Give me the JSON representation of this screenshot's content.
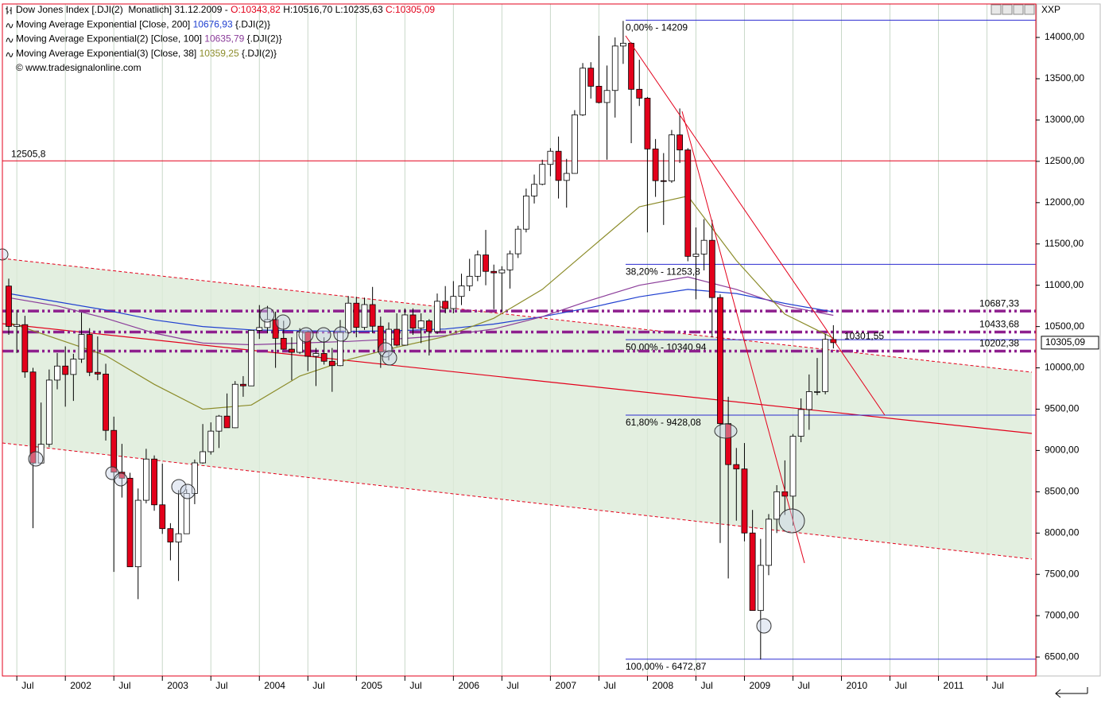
{
  "chart_data": {
    "type": "candlestick",
    "corner_label": "XXP",
    "legend_lines": [
      [
        {
          "text": "Dow Jones Index [.DJI(2)  Monatlich] 31.12.2009 - ",
          "color": "#000000"
        },
        {
          "text": "O:10343,82",
          "color": "#e3001b"
        },
        {
          "text": " H:10516,70 L:10235,63 ",
          "color": "#000000"
        },
        {
          "text": "C:10305,09",
          "color": "#e3001b"
        }
      ],
      [
        {
          "text": "Moving Average Exponential [Close, 200] ",
          "color": "#000000"
        },
        {
          "text": "10676,93",
          "color": "#1f3fd0"
        },
        {
          "text": " {.DJI(2)}",
          "color": "#000000"
        }
      ],
      [
        {
          "text": "Moving Average Exponential(2) [Close, 100] ",
          "color": "#000000"
        },
        {
          "text": "10635,79",
          "color": "#8b3d9a"
        },
        {
          "text": " {.DJI(2)}",
          "color": "#000000"
        }
      ],
      [
        {
          "text": "Moving Average Exponential(3) [Close, 38] ",
          "color": "#000000"
        },
        {
          "text": "10359,25",
          "color": "#8c8c2a"
        },
        {
          "text": " {.DJI(2)}",
          "color": "#000000"
        }
      ],
      [
        {
          "text": "© www.tradesignalonline.com",
          "color": "#000000"
        }
      ]
    ],
    "categories": [
      null,
      "Jul",
      null,
      null,
      null,
      null,
      null,
      "2002",
      null,
      null,
      null,
      null,
      null,
      "Jul",
      null,
      null,
      null,
      null,
      null,
      "2003",
      null,
      null,
      null,
      null,
      null,
      "Jul",
      null,
      null,
      null,
      null,
      null,
      "2004",
      null,
      null,
      null,
      null,
      null,
      "Jul",
      null,
      null,
      null,
      null,
      null,
      "2005",
      null,
      null,
      null,
      null,
      null,
      "Jul",
      null,
      null,
      null,
      null,
      null,
      "2006",
      null,
      null,
      null,
      null,
      null,
      "Jul",
      null,
      null,
      null,
      null,
      null,
      "2007",
      null,
      null,
      null,
      null,
      null,
      "Jul",
      null,
      null,
      null,
      null,
      null,
      "2008",
      null,
      null,
      null,
      null,
      null,
      "Jul",
      null,
      null,
      null,
      null,
      null,
      "2009",
      null,
      null,
      null,
      null,
      null,
      "Jul",
      null,
      null,
      null,
      null,
      null,
      "2010",
      null,
      null,
      null,
      null,
      null,
      "Jul",
      null,
      null,
      null,
      null,
      null,
      "2011",
      null,
      null,
      null,
      null,
      null,
      "Jul",
      null,
      null,
      null,
      null,
      null
    ],
    "ylim": [
      6270,
      14405
    ],
    "yticks": [
      {
        "value": 6500,
        "label": "6500,00"
      },
      {
        "value": 7000,
        "label": "7000,00"
      },
      {
        "value": 7500,
        "label": "7500,00"
      },
      {
        "value": 8000,
        "label": "8000,00"
      },
      {
        "value": 8500,
        "label": "8500,00"
      },
      {
        "value": 9000,
        "label": "9000,00"
      },
      {
        "value": 9500,
        "label": "9500,00"
      },
      {
        "value": 10000,
        "label": "10000,00"
      },
      {
        "value": 10500,
        "label": "10500,00"
      },
      {
        "value": 11000,
        "label": "11000,00"
      },
      {
        "value": 11500,
        "label": "11500,00"
      },
      {
        "value": 12000,
        "label": "12000,00"
      },
      {
        "value": 12500,
        "label": "12500,00"
      },
      {
        "value": 13000,
        "label": "13000,00"
      },
      {
        "value": 13500,
        "label": "13500,00"
      },
      {
        "value": 14000,
        "label": "14000,00"
      }
    ],
    "grid": true,
    "up_color": "#ffffff",
    "down_color": "#e3001b",
    "open": [
      10990,
      10502,
      10523,
      9950,
      8848,
      9075,
      9852,
      10022,
      9920,
      10106,
      10404,
      9946,
      9925,
      9243,
      8737,
      8664,
      7592,
      8397,
      8896,
      8342,
      8054,
      7891,
      7992,
      8480,
      8850,
      8985,
      9234,
      9416,
      9275,
      9801,
      9782,
      10454,
      10488,
      10584,
      10358,
      10226,
      10188,
      10435,
      10140,
      10174,
      10080,
      10027,
      10428,
      10783,
      10490,
      10766,
      10504,
      10193,
      10467,
      10275,
      10641,
      10482,
      10569,
      10440,
      10806,
      10718,
      10865,
      10993,
      11109,
      11367,
      11168,
      11150,
      11186,
      11381,
      11679,
      12081,
      12222,
      12463,
      12622,
      12269,
      12354,
      13063,
      13628,
      13409,
      13212,
      13358,
      13896,
      13930,
      13372,
      13265,
      12650,
      12266,
      12263,
      12820,
      12638,
      11350,
      11378,
      11544,
      10851,
      9325,
      8829,
      8776,
      8001,
      7063,
      7609,
      8168,
      8500,
      8447,
      9172,
      9496,
      9712,
      9713,
      10343.82,
      null,
      null,
      null,
      null,
      null,
      null,
      null,
      null,
      null,
      null,
      null,
      null,
      null,
      null,
      null,
      null,
      null,
      null,
      null,
      null,
      null,
      null,
      null,
      null
    ],
    "high": [
      11080,
      10700,
      10630,
      10000,
      9580,
      9980,
      10180,
      10260,
      10170,
      10670,
      10480,
      10380,
      10050,
      9410,
      9080,
      8730,
      8540,
      9020,
      8940,
      8840,
      8120,
      8520,
      8530,
      8890,
      9320,
      9340,
      9430,
      9690,
      9840,
      9900,
      10460,
      10760,
      10750,
      10680,
      10570,
      10370,
      10480,
      10450,
      10240,
      10370,
      10240,
      10580,
      10870,
      10860,
      10850,
      10980,
      10620,
      10550,
      10660,
      10720,
      10720,
      10660,
      10590,
      10900,
      10990,
      11050,
      11140,
      11320,
      11420,
      11670,
      11250,
      11230,
      11420,
      11720,
      12170,
      12340,
      12520,
      12660,
      12800,
      12530,
      13120,
      13690,
      13700,
      14020,
      13660,
      14000,
      14200,
      13940,
      13730,
      13280,
      12770,
      12600,
      12880,
      13140,
      12660,
      11700,
      11800,
      11790,
      10890,
      9650,
      9030,
      9090,
      8280,
      7930,
      8230,
      8580,
      8880,
      9200,
      9630,
      9920,
      10120,
      10410,
      10516.7,
      null,
      null,
      null,
      null,
      null,
      null,
      null,
      null,
      null,
      null,
      null,
      null,
      null,
      null,
      null,
      null,
      null,
      null,
      null,
      null,
      null,
      null,
      null,
      null
    ],
    "low": [
      10400,
      10180,
      9880,
      8060,
      8840,
      9040,
      9740,
      9530,
      9600,
      10060,
      9900,
      9850,
      9120,
      7530,
      8430,
      7590,
      7200,
      8360,
      8270,
      7990,
      7670,
      7420,
      7990,
      8350,
      8840,
      8950,
      9030,
      9300,
      9270,
      9650,
      9780,
      10350,
      10420,
      10000,
      10220,
      9850,
      10170,
      9960,
      9780,
      10040,
      9710,
      10020,
      10410,
      10370,
      10460,
      10420,
      10000,
      10090,
      10260,
      10270,
      10400,
      10300,
      10150,
      10410,
      10660,
      10660,
      10760,
      10930,
      11050,
      11000,
      10710,
      10680,
      10960,
      11330,
      11640,
      11990,
      12210,
      12320,
      12050,
      11940,
      12350,
      13050,
      13260,
      13200,
      12520,
      13030,
      13680,
      12720,
      13170,
      11640,
      12070,
      11730,
      12240,
      12480,
      11290,
      10830,
      11180,
      10370,
      7880,
      7450,
      8150,
      7900,
      7080,
      6470,
      7490,
      8000,
      8220,
      8090,
      9100,
      9250,
      9670,
      9680,
      10235.63,
      null,
      null,
      null,
      null,
      null,
      null,
      null,
      null,
      null,
      null,
      null,
      null,
      null,
      null,
      null,
      null,
      null,
      null,
      null,
      null,
      null,
      null,
      null,
      null
    ],
    "close": [
      10502,
      10523,
      9950,
      8848,
      9075,
      9852,
      10022,
      9920,
      10106,
      10404,
      9946,
      9925,
      9243,
      8737,
      8664,
      7592,
      8397,
      8896,
      8342,
      8054,
      7891,
      7992,
      8480,
      8850,
      8985,
      9234,
      9416,
      9275,
      9801,
      9782,
      10454,
      10488,
      10584,
      10358,
      10226,
      10188,
      10435,
      10140,
      10174,
      10080,
      10027,
      10428,
      10783,
      10490,
      10766,
      10504,
      10193,
      10467,
      10275,
      10641,
      10482,
      10569,
      10440,
      10806,
      10718,
      10865,
      10993,
      11109,
      11367,
      11168,
      11150,
      11186,
      11381,
      11679,
      12081,
      12222,
      12463,
      12622,
      12269,
      12354,
      13063,
      13628,
      13409,
      13212,
      13358,
      13896,
      13930,
      13372,
      13265,
      12650,
      12266,
      12263,
      12820,
      12638,
      11350,
      11378,
      11544,
      10851,
      9325,
      8829,
      8776,
      8001,
      7063,
      7609,
      8168,
      8500,
      8447,
      9172,
      9496,
      9712,
      9713,
      10345,
      10305.09,
      null,
      null,
      null,
      null,
      null,
      null,
      null,
      null,
      null,
      null,
      null,
      null,
      null,
      null,
      null,
      null,
      null,
      null,
      null,
      null,
      null,
      null,
      null,
      null
    ],
    "series": [
      {
        "color": "#1f3fd0",
        "x": [
          0,
          6,
          12,
          18,
          24,
          30,
          36,
          42,
          48,
          54,
          60,
          66,
          72,
          78,
          84,
          90,
          96,
          102
        ],
        "values": [
          10900,
          10800,
          10700,
          10580,
          10500,
          10460,
          10450,
          10440,
          10450,
          10470,
          10530,
          10620,
          10730,
          10860,
          10950,
          10900,
          10780,
          10676.93
        ]
      },
      {
        "color": "#8b3d9a",
        "x": [
          0,
          6,
          12,
          18,
          24,
          30,
          36,
          42,
          48,
          54,
          60,
          66,
          72,
          78,
          84,
          90,
          96,
          102
        ],
        "values": [
          10850,
          10750,
          10600,
          10420,
          10300,
          10280,
          10300,
          10320,
          10350,
          10390,
          10470,
          10620,
          10820,
          11000,
          11100,
          10950,
          10750,
          10635.79
        ]
      },
      {
        "color": "#8c8c2a",
        "x": [
          0,
          6,
          12,
          18,
          24,
          30,
          36,
          42,
          48,
          54,
          60,
          66,
          72,
          78,
          84,
          90,
          96,
          102
        ],
        "values": [
          10550,
          10350,
          10150,
          9800,
          9500,
          9550,
          9900,
          10100,
          10250,
          10380,
          10600,
          10950,
          11450,
          11950,
          12080,
          11300,
          10650,
          10359.25
        ]
      }
    ],
    "resistance": {
      "value": 12505.8,
      "label": "12505,8",
      "color": "#e3001b"
    },
    "dash_levels": [
      {
        "value": 10687.33,
        "label": "10687,33",
        "color": "#8e1f8e"
      },
      {
        "value": 10433.68,
        "label": "10433,68",
        "color": "#8e1f8e"
      },
      {
        "value": 10202.38,
        "label": "10202,38",
        "color": "#8e1f8e"
      }
    ],
    "fibonacci": [
      {
        "value": 14209,
        "label": "0,00% - 14209"
      },
      {
        "value": 11253.8,
        "label": "38,20% - 11253,8"
      },
      {
        "value": 10340.94,
        "label": "50,00% - 10340,94"
      },
      {
        "value": 9428.08,
        "label": "61,80% - 9428,08"
      },
      {
        "value": 6472.87,
        "label": "100,00% - 6472,87"
      }
    ],
    "fib_color": "#2b2bd0",
    "marker": {
      "value": 10301.55,
      "label": "10301,55",
      "color": "#e05a78"
    },
    "last_price": {
      "value": 10305.09,
      "label": "10305,09"
    }
  }
}
